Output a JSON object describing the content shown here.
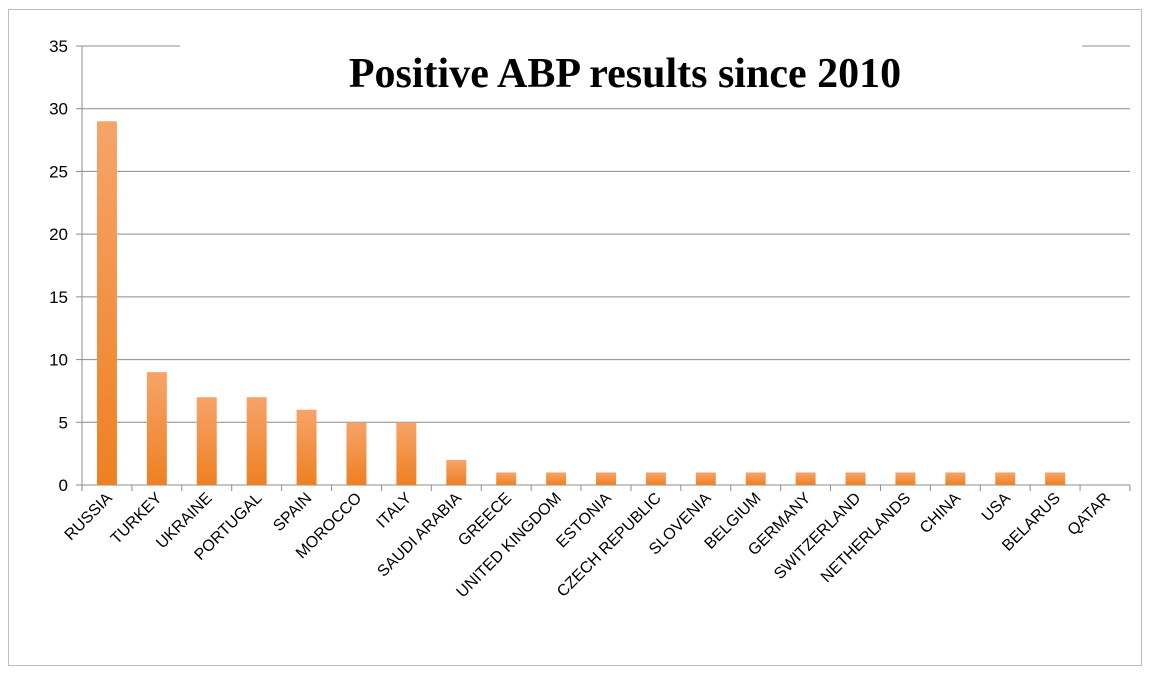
{
  "chart_data": {
    "type": "bar",
    "title": "Positive ABP results since 2010",
    "xlabel": "",
    "ylabel": "",
    "ylim": [
      0,
      35
    ],
    "yticks": [
      0,
      5,
      10,
      15,
      20,
      25,
      30,
      35
    ],
    "grid": true,
    "legend": "none",
    "categories": [
      "RUSSIA",
      "TURKEY",
      "UKRAINE",
      "PORTUGAL",
      "SPAIN",
      "MOROCCO",
      "ITALY",
      "SAUDI ARABIA",
      "GREECE",
      "UNITED KINGDOM",
      "ESTONIA",
      "CZECH REPUBLIC",
      "SLOVENIA",
      "BELGIUM",
      "GERMANY",
      "SWITZERLAND",
      "NETHERLANDS",
      "CHINA",
      "USA",
      "BELARUS",
      "QATAR"
    ],
    "values": [
      29,
      9,
      7,
      7,
      6,
      5,
      5,
      2,
      1,
      1,
      1,
      1,
      1,
      1,
      1,
      1,
      1,
      1,
      1,
      1,
      0
    ],
    "bar_color_top": "#f7a469",
    "bar_color_bottom": "#ee8022"
  }
}
